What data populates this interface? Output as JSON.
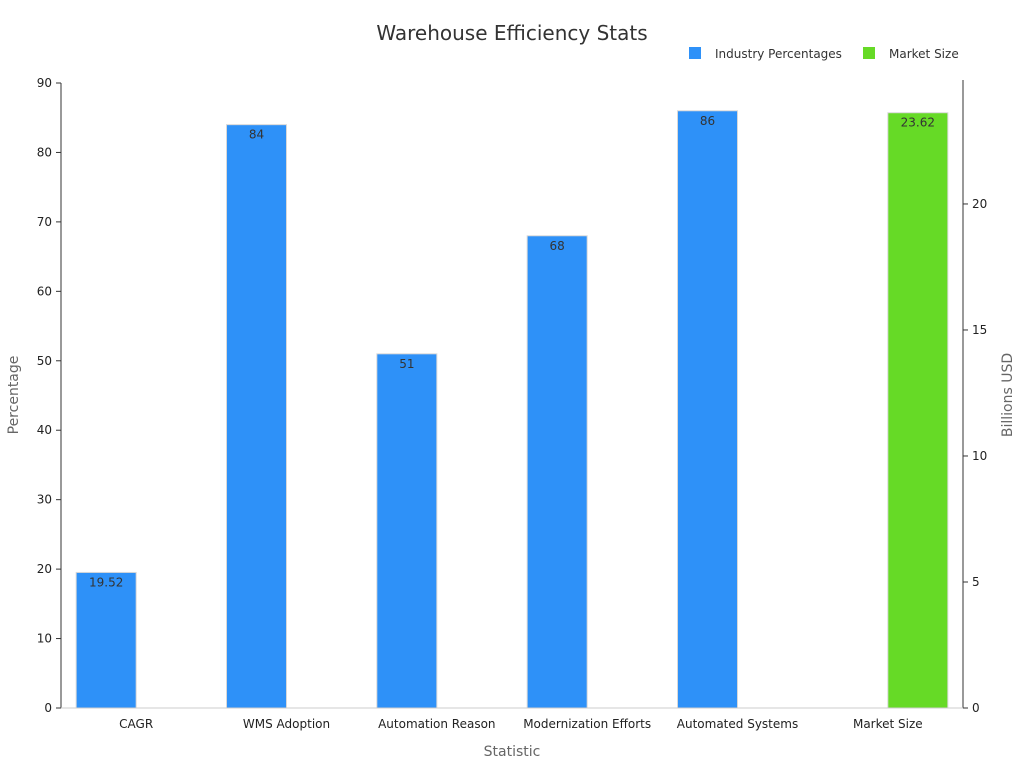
{
  "chart_data": {
    "type": "bar",
    "title": "Warehouse Efficiency Stats",
    "xlabel": "Statistic",
    "ylabel": "Percentage",
    "y2label": "Billions USD",
    "categories": [
      "CAGR",
      "WMS Adoption",
      "Automation Reason",
      "Modernization Efforts",
      "Automated Systems",
      "Market Size"
    ],
    "series": [
      {
        "name": "Industry Percentages",
        "axis": "left",
        "color": "#2e91f8",
        "values": [
          19.52,
          84,
          51,
          68,
          86,
          null
        ],
        "labels": [
          "19.52",
          "84",
          "51",
          "68",
          "86",
          ""
        ]
      },
      {
        "name": "Market Size",
        "axis": "right",
        "color": "#66da26",
        "values": [
          null,
          null,
          null,
          null,
          null,
          23.62
        ],
        "labels": [
          "",
          "",
          "",
          "",
          "",
          "23.62"
        ]
      }
    ],
    "ylim": [
      0,
      90
    ],
    "y_ticks": [
      0,
      10,
      20,
      30,
      40,
      50,
      60,
      70,
      80,
      90
    ],
    "y2lim": [
      0,
      24.8
    ],
    "y2_ticks": [
      0,
      5,
      10,
      15,
      20
    ],
    "legend": "top-right",
    "grid": false
  }
}
